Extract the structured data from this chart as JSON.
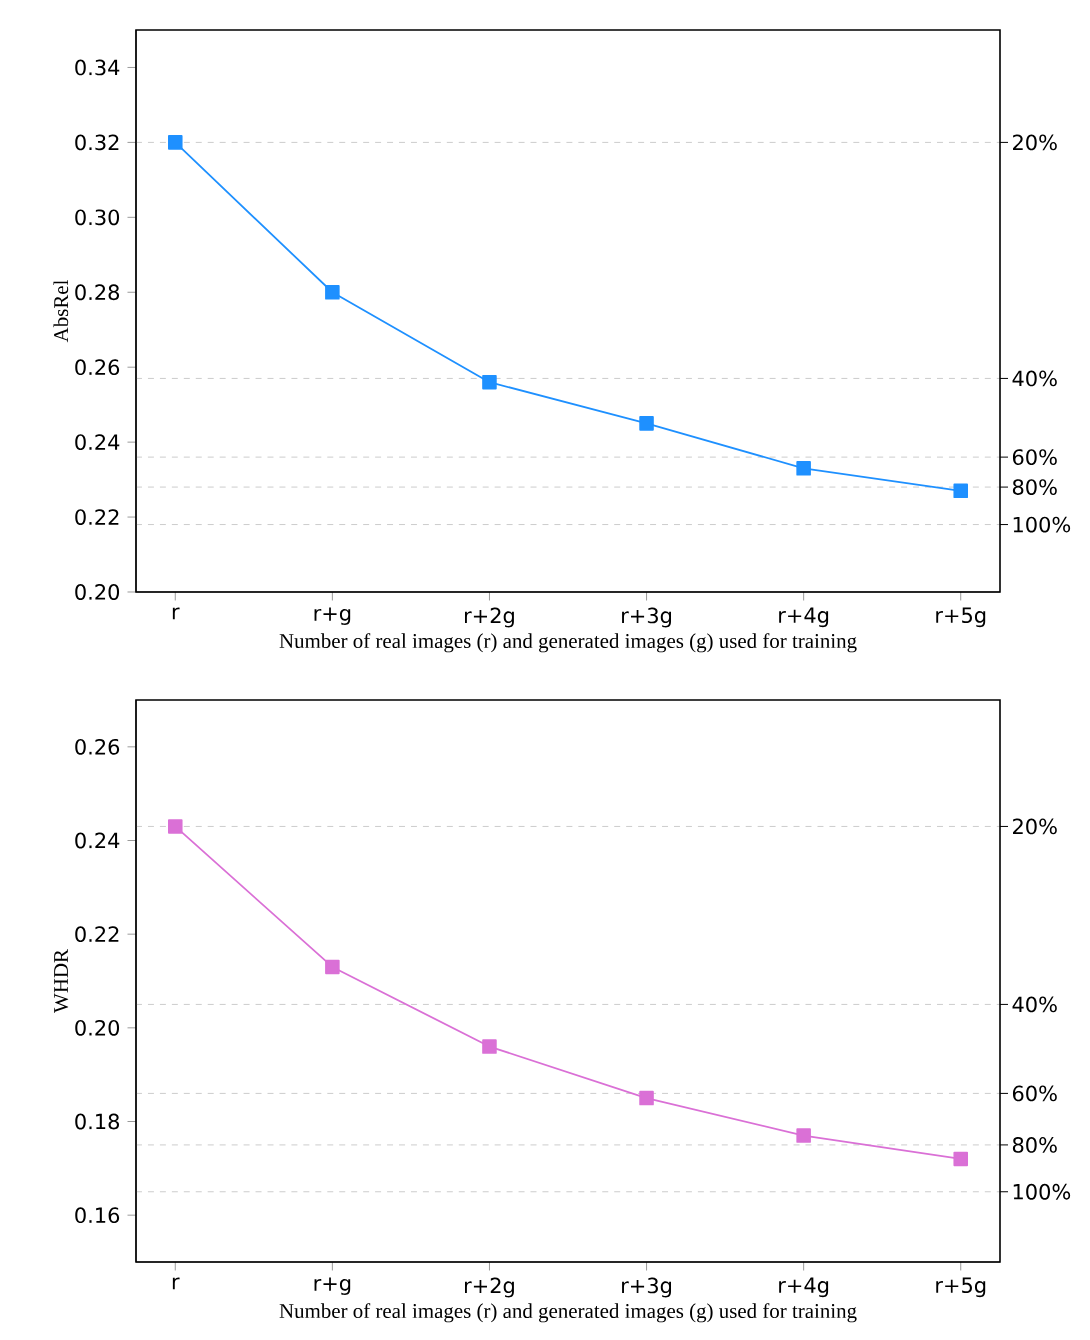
{
  "chart_data": [
    {
      "type": "line",
      "ylabel": "AbsRel",
      "xlabel": "Number of real images (r) and generated images (g) used for training",
      "categories": [
        "r",
        "r+g",
        "r+2g",
        "r+3g",
        "r+4g",
        "r+5g"
      ],
      "series": [
        {
          "color": "#1e90ff",
          "values": [
            0.32,
            0.28,
            0.256,
            0.245,
            0.233,
            0.227
          ]
        }
      ],
      "marker": "square",
      "line_style": "solid",
      "ylim": [
        0.2,
        0.35
      ],
      "yticks": [
        {
          "value": 0.2,
          "label": "0.20"
        },
        {
          "value": 0.22,
          "label": "0.22"
        },
        {
          "value": 0.24,
          "label": "0.24"
        },
        {
          "value": 0.26,
          "label": "0.26"
        },
        {
          "value": 0.28,
          "label": "0.28"
        },
        {
          "value": 0.3,
          "label": "0.30"
        },
        {
          "value": 0.32,
          "label": "0.32"
        },
        {
          "value": 0.34,
          "label": "0.34"
        }
      ],
      "ref_lines": [
        {
          "axis": "y",
          "value": 0.32,
          "line_style": "dashed",
          "color": "#cccccc"
        },
        {
          "axis": "y",
          "value": 0.257,
          "line_style": "dashed",
          "color": "#cccccc"
        },
        {
          "axis": "y",
          "value": 0.236,
          "line_style": "dashed",
          "color": "#cccccc"
        },
        {
          "axis": "y",
          "value": 0.228,
          "line_style": "dashed",
          "color": "#cccccc"
        },
        {
          "axis": "y",
          "value": 0.218,
          "line_style": "dashed",
          "color": "#cccccc"
        }
      ],
      "annotations": [
        "20%",
        "40%",
        "60%",
        "80%",
        "100%"
      ]
    },
    {
      "type": "line",
      "ylabel": "WHDR",
      "xlabel": "Number of real images (r) and generated images (g) used for training",
      "categories": [
        "r",
        "r+g",
        "r+2g",
        "r+3g",
        "r+4g",
        "r+5g"
      ],
      "series": [
        {
          "color": "#da70d6",
          "values": [
            0.243,
            0.213,
            0.196,
            0.185,
            0.177,
            0.172
          ]
        }
      ],
      "marker": "square",
      "line_style": "solid",
      "ylim": [
        0.15,
        0.27
      ],
      "yticks": [
        {
          "value": 0.16,
          "label": "0.16"
        },
        {
          "value": 0.18,
          "label": "0.18"
        },
        {
          "value": 0.2,
          "label": "0.20"
        },
        {
          "value": 0.22,
          "label": "0.22"
        },
        {
          "value": 0.24,
          "label": "0.24"
        },
        {
          "value": 0.26,
          "label": "0.26"
        }
      ],
      "ref_lines": [
        {
          "axis": "y",
          "value": 0.243,
          "line_style": "dashed",
          "color": "#cccccc"
        },
        {
          "axis": "y",
          "value": 0.205,
          "line_style": "dashed",
          "color": "#cccccc"
        },
        {
          "axis": "y",
          "value": 0.186,
          "line_style": "dashed",
          "color": "#cccccc"
        },
        {
          "axis": "y",
          "value": 0.175,
          "line_style": "dashed",
          "color": "#cccccc"
        },
        {
          "axis": "y",
          "value": 0.165,
          "line_style": "dashed",
          "color": "#cccccc"
        }
      ],
      "annotations": [
        "20%",
        "40%",
        "60%",
        "80%",
        "100%"
      ]
    }
  ]
}
